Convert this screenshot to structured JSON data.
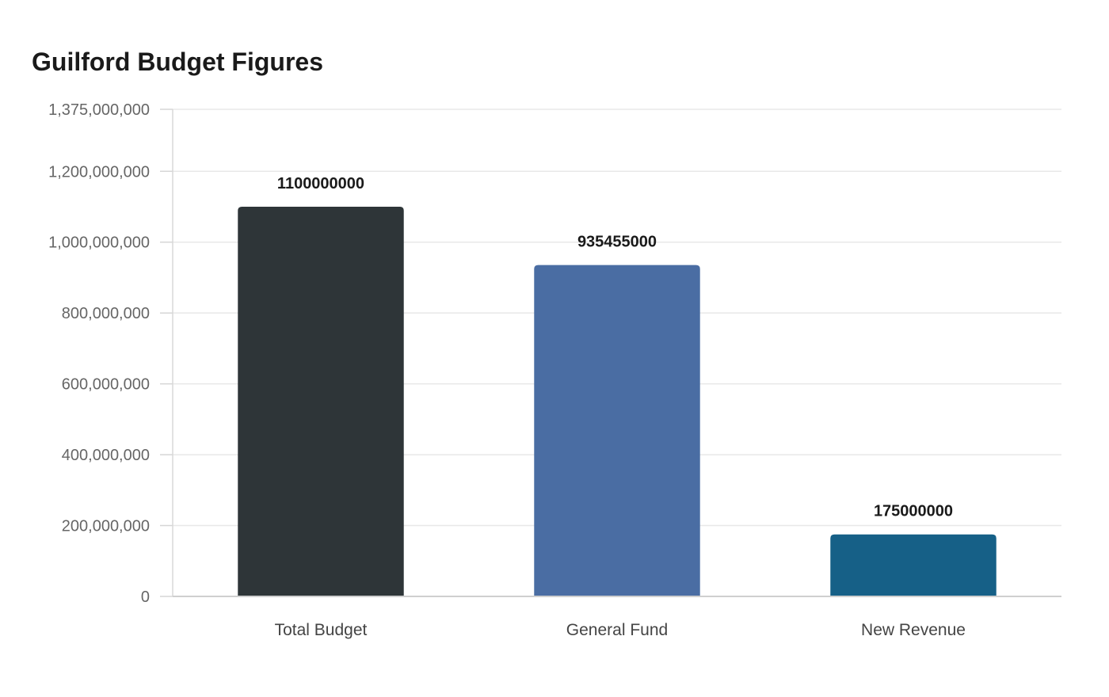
{
  "chart_data": {
    "type": "bar",
    "title": "Guilford Budget Figures",
    "xlabel": "",
    "ylabel": "",
    "categories": [
      "Total Budget",
      "General Fund",
      "New Revenue"
    ],
    "values": [
      1100000000,
      935455000,
      175000000
    ],
    "data_labels": [
      "1100000000",
      "935455000",
      "175000000"
    ],
    "colors": [
      "#2e3538",
      "#4a6da3",
      "#166087"
    ],
    "ylim": [
      0,
      1375000000
    ],
    "yticks": [
      0,
      200000000,
      400000000,
      600000000,
      800000000,
      1000000000,
      1200000000,
      1375000000
    ],
    "ytick_labels": [
      "0",
      "200,000,000",
      "400,000,000",
      "600,000,000",
      "800,000,000",
      "1,000,000,000",
      "1,200,000,000",
      "1,375,000,000"
    ],
    "grid": true,
    "legend": "none"
  }
}
